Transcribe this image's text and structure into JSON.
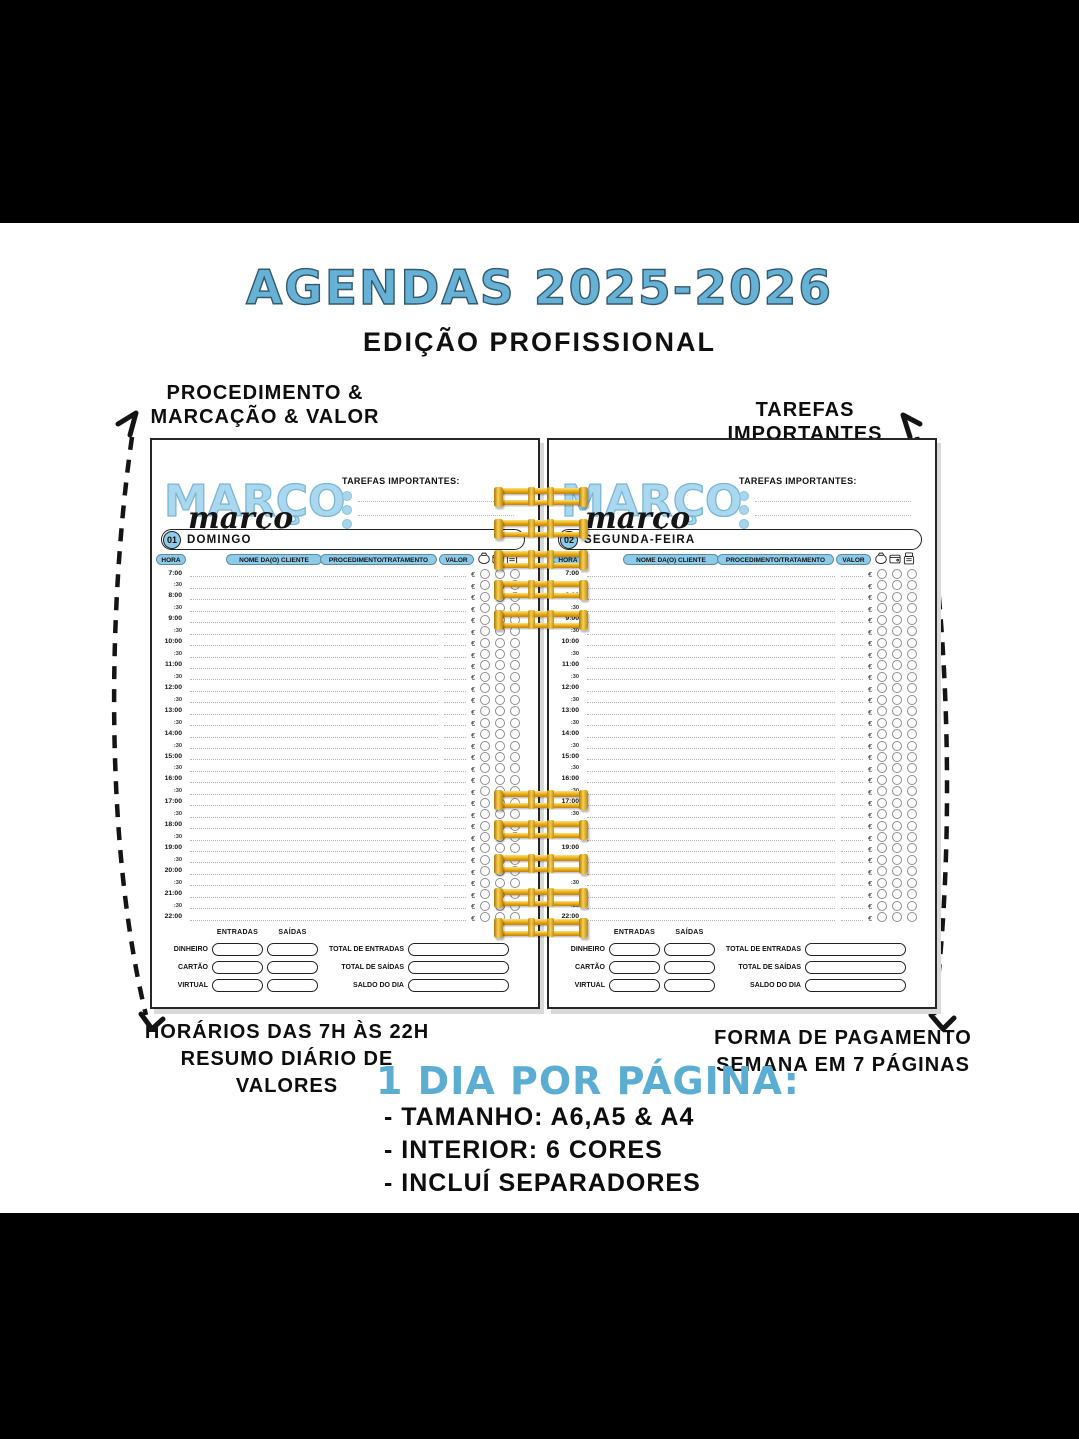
{
  "colors": {
    "accent_blue": "#66b2d6",
    "bubble_blue": "#abd8ee",
    "pill_blue": "#8ecbe9",
    "gold": "#eaa911"
  },
  "header": {
    "title": "AGENDAS 2025-2026",
    "subtitle": "EDIÇÃO PROFISSIONAL"
  },
  "annotations": {
    "top_left_line1": "PROCEDIMENTO &",
    "top_left_line2": "MARCAÇÃO & VALOR",
    "top_right": "TAREFAS IMPORTANTES",
    "bottom_left_line1": "HORÁRIOS DAS 7H ÀS 22H",
    "bottom_left_line2": "RESUMO DIÁRIO DE VALORES",
    "bottom_right_line1": "FORMA DE PAGAMENTO",
    "bottom_right_line2": "SEMANA EM 7 PÁGINAS"
  },
  "features": {
    "heading": "1 DIA POR PÁGINA:",
    "items": [
      "- TAMANHO: A6,A5 & A4",
      "- INTERIOR: 6 CORES",
      "- INCLUÍ SEPARADORES"
    ]
  },
  "planner": {
    "month_display": "MARÇO",
    "month_script": "março",
    "tasks_label": "TAREFAS IMPORTANTES:",
    "tasks_lines": 3,
    "columns": {
      "hora": "HORA",
      "cliente": "NOME DA(O) CLIENTE",
      "procedimento": "PROCEDIMENTO/TRATAMENTO",
      "valor": "VALOR"
    },
    "payment_icons": [
      "money-bag-icon",
      "wallet-icon",
      "card-machine-icon"
    ],
    "currency": "€",
    "times": [
      "7:00",
      ":30",
      "8:00",
      ":30",
      "9:00",
      ":30",
      "10:00",
      ":30",
      "11:00",
      ":30",
      "12:00",
      ":30",
      "13:00",
      ":30",
      "14:00",
      ":30",
      "15:00",
      ":30",
      "16:00",
      ":30",
      "17:00",
      ":30",
      "18:00",
      ":30",
      "19:00",
      ":30",
      "20:00",
      ":30",
      "21:00",
      ":30",
      "22:00"
    ],
    "summary": {
      "col_in": "ENTRADAS",
      "col_out": "SAÍDAS",
      "methods": [
        "DINHEIRO",
        "CARTÃO",
        "VIRTUAL"
      ],
      "totals": [
        "TOTAL DE ENTRADAS",
        "TOTAL DE SAÍDAS",
        "SALDO DO DIA"
      ]
    },
    "pages": [
      {
        "day_number": "01",
        "day_name": "DOMINGO"
      },
      {
        "day_number": "02",
        "day_name": "SEGUNDA-FEIRA"
      }
    ]
  }
}
